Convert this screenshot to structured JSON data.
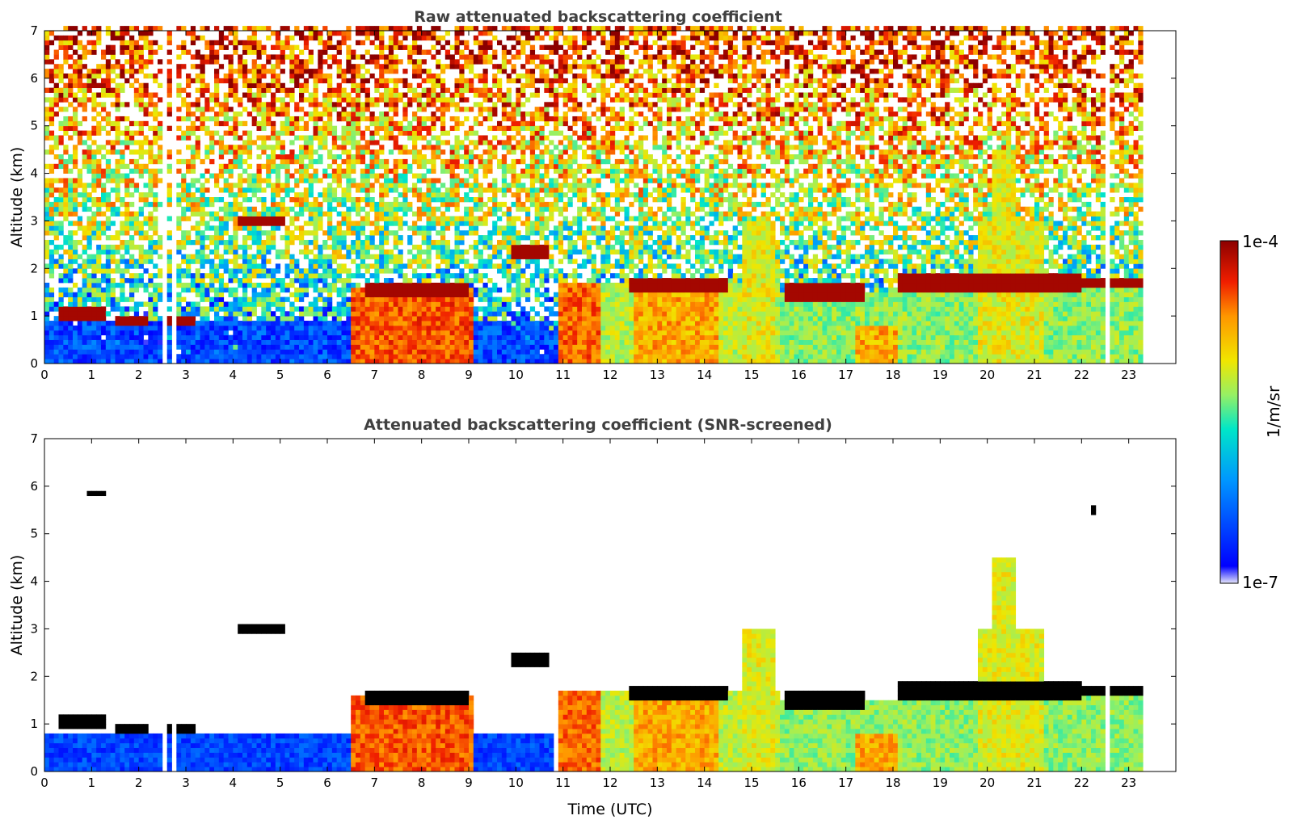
{
  "colors": {
    "scale": [
      "#e6e6fa",
      "#0000ff",
      "#0096ff",
      "#00e6c8",
      "#96f064",
      "#f0e600",
      "#ff9600",
      "#f01e00",
      "#8c0000"
    ],
    "void": "#ffffff",
    "black_layer": "#000000"
  },
  "chart_data": [
    {
      "type": "heatmap",
      "title": "Raw attenuated backscattering coefficient",
      "xlabel": "",
      "ylabel": "Altitude (km)",
      "xlim": [
        0,
        24
      ],
      "ylim": [
        0,
        7
      ],
      "x_ticks": [
        "0",
        "1",
        "2",
        "3",
        "4",
        "5",
        "6",
        "7",
        "8",
        "9",
        "10",
        "11",
        "12",
        "13",
        "14",
        "15",
        "16",
        "17",
        "18",
        "19",
        "20",
        "21",
        "22",
        "23"
      ],
      "y_ticks": [
        "0",
        "1",
        "2",
        "3",
        "4",
        "5",
        "6",
        "7"
      ],
      "data_end_time": 23.3,
      "screened": false,
      "data_gaps": [
        [
          2.5,
          2.62
        ],
        [
          2.72,
          2.82
        ],
        [
          22.5,
          22.6
        ]
      ],
      "cloud_layers": [
        {
          "t0": 0.3,
          "t1": 1.3,
          "z0": 0.9,
          "z1": 1.2
        },
        {
          "t0": 1.5,
          "t1": 2.2,
          "z0": 0.8,
          "z1": 0.95
        },
        {
          "t0": 2.5,
          "t1": 3.2,
          "z0": 0.8,
          "z1": 0.95
        },
        {
          "t0": 4.1,
          "t1": 5.1,
          "z0": 2.95,
          "z1": 3.15
        },
        {
          "t0": 6.8,
          "t1": 9.0,
          "z0": 1.4,
          "z1": 1.7
        },
        {
          "t0": 9.9,
          "t1": 10.7,
          "z0": 2.2,
          "z1": 2.5
        },
        {
          "t0": 12.4,
          "t1": 14.5,
          "z0": 1.55,
          "z1": 1.85
        },
        {
          "t0": 15.7,
          "t1": 17.4,
          "z0": 1.35,
          "z1": 1.7
        },
        {
          "t0": 18.1,
          "t1": 22.0,
          "z0": 1.5,
          "z1": 1.9
        },
        {
          "t0": 22.0,
          "t1": 23.3,
          "z0": 1.65,
          "z1": 1.85
        },
        {
          "t0": 0.95,
          "t1": 1.25,
          "z0": 5.8,
          "z1": 5.92
        },
        {
          "t0": 22.2,
          "t1": 22.35,
          "z0": 5.4,
          "z1": 5.55
        }
      ],
      "aerosol_plumes": [
        {
          "t0": 6.5,
          "t1": 9.05,
          "top": 1.6,
          "level": 0.82
        },
        {
          "t0": 10.9,
          "t1": 11.75,
          "top": 1.7,
          "level": 0.8
        },
        {
          "t0": 11.8,
          "t1": 15.6,
          "top": 1.7,
          "level": 0.55
        },
        {
          "t0": 12.5,
          "t1": 14.3,
          "top": 1.6,
          "level": 0.72
        },
        {
          "t0": 14.8,
          "t1": 15.5,
          "top": 3.0,
          "level": 0.6
        },
        {
          "t0": 15.6,
          "t1": 18.1,
          "top": 1.5,
          "level": 0.5
        },
        {
          "t0": 17.2,
          "t1": 18.1,
          "top": 0.8,
          "level": 0.72
        },
        {
          "t0": 18.1,
          "t1": 23.3,
          "top": 1.8,
          "level": 0.5
        },
        {
          "t0": 19.8,
          "t1": 21.2,
          "top": 3.0,
          "level": 0.6
        },
        {
          "t0": 20.1,
          "t1": 20.6,
          "top": 4.5,
          "level": 0.6
        }
      ]
    },
    {
      "type": "heatmap",
      "title": "Attenuated backscattering coefficient (SNR-screened)",
      "xlabel": "Time (UTC)",
      "ylabel": "Altitude (km)",
      "xlim": [
        0,
        24
      ],
      "ylim": [
        0,
        7
      ],
      "x_ticks": [
        "0",
        "1",
        "2",
        "3",
        "4",
        "5",
        "6",
        "7",
        "8",
        "9",
        "10",
        "11",
        "12",
        "13",
        "14",
        "15",
        "16",
        "17",
        "18",
        "19",
        "20",
        "21",
        "22",
        "23"
      ],
      "y_ticks": [
        "0",
        "1",
        "2",
        "3",
        "4",
        "5",
        "6",
        "7"
      ],
      "data_end_time": 23.3,
      "screened": true
    }
  ],
  "colorbar": {
    "max_label": "1e-4",
    "min_label": "1e-7",
    "unit_label": "1/m/sr",
    "min": 1e-07,
    "max": 0.0001,
    "scale": "log"
  }
}
